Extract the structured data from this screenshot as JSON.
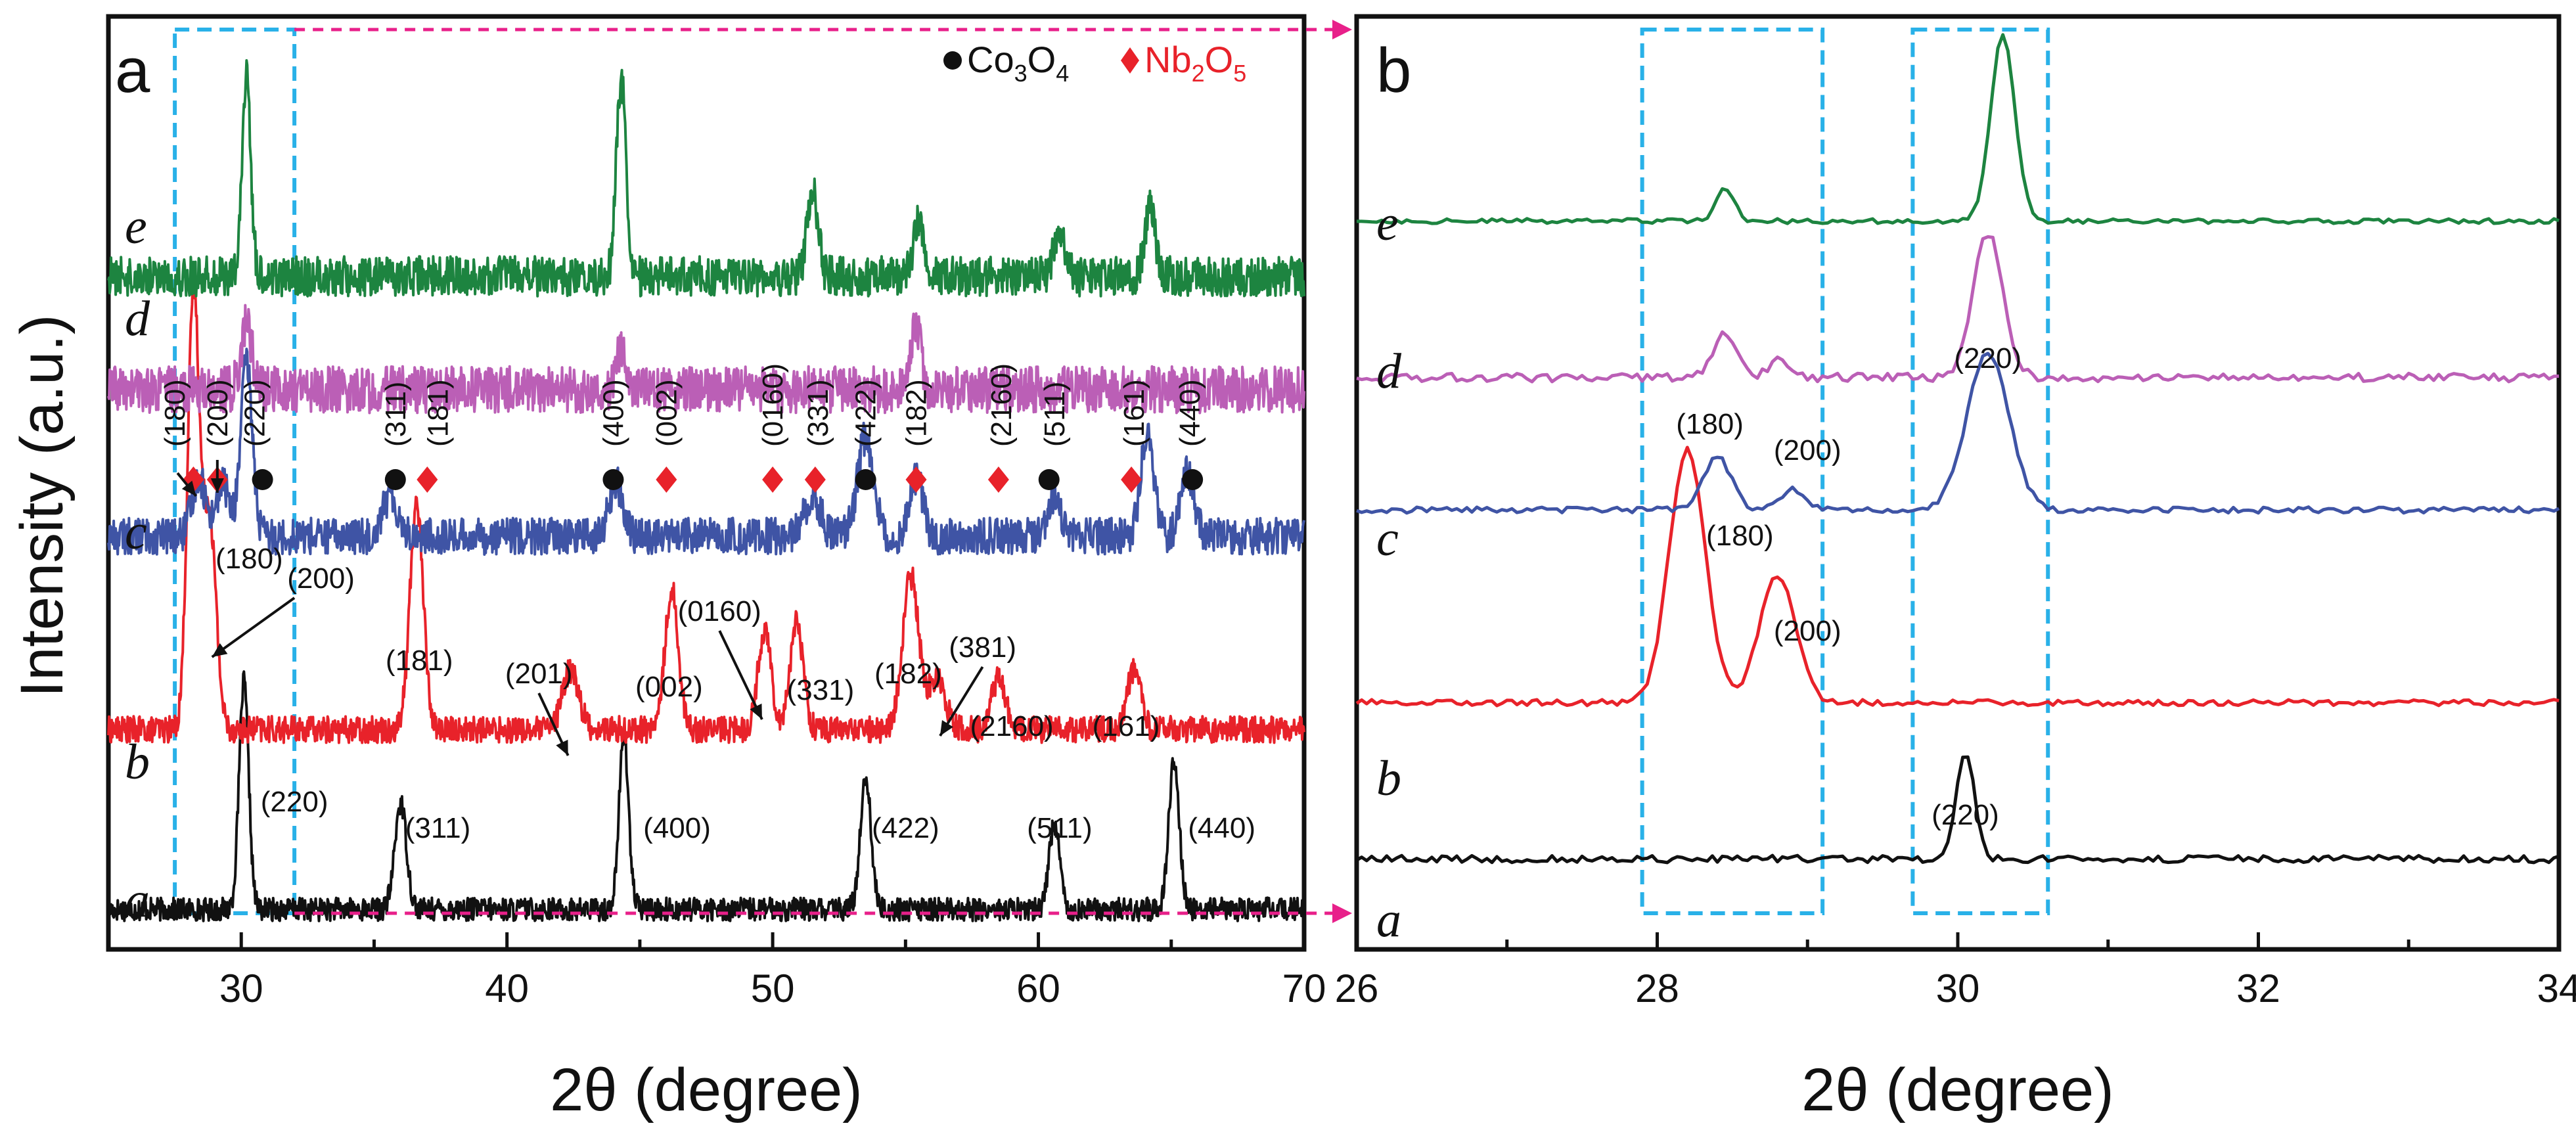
{
  "y_axis_title": "Intensity (a.u.)",
  "legend": [
    {
      "symbol": "circle",
      "label": "Co3O4",
      "text": "Co",
      "sub1": "3",
      "mid": "O",
      "sub2": "4",
      "color": "#111111"
    },
    {
      "symbol": "diamond",
      "label": "Nb2O5",
      "text": "Nb",
      "sub1": "2",
      "mid": "O",
      "sub2": "5",
      "color": "#e8222a"
    }
  ],
  "series_colors": {
    "a": "#111111",
    "b": "#e8222a",
    "c": "#3f54a5",
    "d": "#bb5fb6",
    "e": "#1d8440"
  },
  "highlight_colors": {
    "box": "#29b1e8",
    "connector": "#e8208a"
  },
  "chart_data": [
    {
      "panel": "a",
      "type": "line",
      "xlabel": "2θ (degree)",
      "ylabel": "Intensity (a.u.)",
      "xlim": [
        25,
        70
      ],
      "xticks": [
        30,
        40,
        50,
        60,
        70
      ],
      "x_minor_step": 5,
      "curve_order_bottom_to_top": [
        "a",
        "b",
        "c",
        "d",
        "e",
        "top"
      ],
      "series": [
        {
          "name": "a",
          "label": "a",
          "baseline": 0.0,
          "noise": 0.35,
          "peaks": [
            [
              30.1,
              3.4,
              0.18
            ],
            [
              36.0,
              1.6,
              0.22
            ],
            [
              44.4,
              2.6,
              0.18
            ],
            [
              53.5,
              2.0,
              0.2
            ],
            [
              60.6,
              1.3,
              0.2
            ],
            [
              65.1,
              2.2,
              0.2
            ]
          ]
        },
        {
          "name": "b",
          "label": "b",
          "baseline": 2.7,
          "noise": 0.4,
          "peaks": [
            [
              28.2,
              6.5,
              0.22
            ],
            [
              28.8,
              3.2,
              0.25
            ],
            [
              36.6,
              3.4,
              0.25
            ],
            [
              42.4,
              0.9,
              0.3
            ],
            [
              46.2,
              2.1,
              0.25
            ],
            [
              49.7,
              1.5,
              0.25
            ],
            [
              50.9,
              1.6,
              0.25
            ],
            [
              55.2,
              2.3,
              0.3
            ],
            [
              56.2,
              0.8,
              0.3
            ],
            [
              58.5,
              0.8,
              0.25
            ],
            [
              63.6,
              0.9,
              0.25
            ]
          ]
        },
        {
          "name": "c",
          "label": "c",
          "baseline": 5.6,
          "noise": 0.55,
          "peaks": [
            [
              28.4,
              0.9,
              0.25
            ],
            [
              29.3,
              0.8,
              0.25
            ],
            [
              30.2,
              2.6,
              0.22
            ],
            [
              35.6,
              0.6,
              0.3
            ],
            [
              44.1,
              0.8,
              0.25
            ],
            [
              51.5,
              0.6,
              0.3
            ],
            [
              53.5,
              1.5,
              0.3
            ],
            [
              55.4,
              0.9,
              0.25
            ],
            [
              60.6,
              0.6,
              0.25
            ],
            [
              64.1,
              1.5,
              0.25
            ],
            [
              65.6,
              1.0,
              0.25
            ]
          ]
        },
        {
          "name": "d",
          "label": "d",
          "baseline": 7.8,
          "noise": 0.7,
          "peaks": [
            [
              30.2,
              1.0,
              0.2
            ],
            [
              44.3,
              0.6,
              0.2
            ],
            [
              55.4,
              0.9,
              0.2
            ]
          ]
        },
        {
          "name": "top",
          "label": "e",
          "baseline": 9.5,
          "noise": 0.6,
          "peaks": [
            [
              30.2,
              3.0,
              0.16
            ],
            [
              44.3,
              3.0,
              0.18
            ],
            [
              51.5,
              1.3,
              0.2
            ],
            [
              55.5,
              0.8,
              0.2
            ],
            [
              60.8,
              0.7,
              0.2
            ],
            [
              64.2,
              1.0,
              0.2
            ]
          ]
        }
      ],
      "curve_labels": [
        "a",
        "b",
        "c",
        "d",
        "e"
      ],
      "markers": [
        {
          "symbol": "diamond",
          "x": 28.2
        },
        {
          "symbol": "diamond",
          "x": 29.1
        },
        {
          "symbol": "circle",
          "x": 30.8
        },
        {
          "symbol": "circle",
          "x": 35.8
        },
        {
          "symbol": "diamond",
          "x": 37.0
        },
        {
          "symbol": "circle",
          "x": 44.0
        },
        {
          "symbol": "diamond",
          "x": 46.0
        },
        {
          "symbol": "diamond",
          "x": 50.0
        },
        {
          "symbol": "diamond",
          "x": 51.6
        },
        {
          "symbol": "circle",
          "x": 53.5
        },
        {
          "symbol": "diamond",
          "x": 55.4
        },
        {
          "symbol": "diamond",
          "x": 58.5
        },
        {
          "symbol": "circle",
          "x": 60.4
        },
        {
          "symbol": "diamond",
          "x": 63.5
        },
        {
          "symbol": "circle",
          "x": 65.8
        }
      ],
      "annotations_c_vertical": [
        {
          "text": "(180)",
          "x": 27.5
        },
        {
          "text": "(200)",
          "x": 29.1
        },
        {
          "text": "(220)",
          "x": 30.5
        },
        {
          "text": "(311)",
          "x": 35.8
        },
        {
          "text": "(181)",
          "x": 37.4
        },
        {
          "text": "(400)",
          "x": 44.0
        },
        {
          "text": "(002)",
          "x": 46.0
        },
        {
          "text": "(0160)",
          "x": 50.0
        },
        {
          "text": "(331)",
          "x": 51.7
        },
        {
          "text": "(422)",
          "x": 53.5
        },
        {
          "text": "(182)",
          "x": 55.4
        },
        {
          "text": "(2160)",
          "x": 58.6
        },
        {
          "text": "(511)",
          "x": 60.6
        },
        {
          "text": "(161)",
          "x": 63.6
        },
        {
          "text": "(440)",
          "x": 65.7
        }
      ],
      "annotations_b": [
        {
          "text": "(180)",
          "x": 30.3
        },
        {
          "text": "(200)",
          "x": 33.0
        },
        {
          "text": "(181)",
          "x": 36.7
        },
        {
          "text": "(201)",
          "x": 41.2
        },
        {
          "text": "(0160)",
          "x": 48.0
        },
        {
          "text": "(002)",
          "x": 46.1
        },
        {
          "text": "(331)",
          "x": 51.8
        },
        {
          "text": "(182)",
          "x": 55.1
        },
        {
          "text": "(381)",
          "x": 57.9
        },
        {
          "text": "(2160)",
          "x": 59.0
        },
        {
          "text": "(161)",
          "x": 63.3
        }
      ],
      "annotations_a": [
        {
          "text": "(220)",
          "x": 32.0
        },
        {
          "text": "(311)",
          "x": 37.4
        },
        {
          "text": "(400)",
          "x": 46.4
        },
        {
          "text": "(422)",
          "x": 55.0
        },
        {
          "text": "(511)",
          "x": 60.8
        },
        {
          "text": "(440)",
          "x": 66.9
        }
      ],
      "highlight_range": [
        27.5,
        32.0
      ]
    },
    {
      "panel": "b",
      "type": "line",
      "xlabel": "2θ (degree)",
      "ylabel": "",
      "xlim": [
        26,
        34
      ],
      "xticks": [
        26,
        28,
        30,
        32,
        34
      ],
      "x_minor_step": 1,
      "series": [
        {
          "name": "a",
          "label": "a",
          "baseline": 0.0,
          "noise": 0.12,
          "peaks": [
            [
              30.05,
              1.8,
              0.06
            ]
          ]
        },
        {
          "name": "b",
          "label": "b",
          "baseline": 2.6,
          "noise": 0.1,
          "peaks": [
            [
              28.2,
              4.2,
              0.12
            ],
            [
              28.8,
              2.1,
              0.12
            ]
          ]
        },
        {
          "name": "c",
          "label": "c",
          "baseline": 5.8,
          "noise": 0.1,
          "peaks": [
            [
              28.4,
              0.9,
              0.09
            ],
            [
              28.9,
              0.35,
              0.08
            ],
            [
              30.2,
              2.6,
              0.14
            ]
          ]
        },
        {
          "name": "d",
          "label": "d",
          "baseline": 8.0,
          "noise": 0.14,
          "peaks": [
            [
              28.45,
              0.75,
              0.08
            ],
            [
              28.8,
              0.3,
              0.06
            ],
            [
              30.2,
              2.4,
              0.1
            ]
          ]
        },
        {
          "name": "top",
          "label": "e",
          "baseline": 10.6,
          "noise": 0.08,
          "peaks": [
            [
              28.45,
              0.55,
              0.06
            ],
            [
              30.3,
              3.1,
              0.08
            ]
          ]
        }
      ],
      "curve_labels": [
        "a",
        "b",
        "c",
        "d",
        "e"
      ],
      "annotations": [
        {
          "text": "(220)",
          "x": 30.05,
          "curve": "a"
        },
        {
          "text": "(180)",
          "x": 28.5,
          "curve": "b"
        },
        {
          "text": "(200)",
          "x": 29.0,
          "curve": "b"
        },
        {
          "text": "(180)",
          "x": 28.35,
          "curve": "c"
        },
        {
          "text": "(200)",
          "x": 28.95,
          "curve": "c"
        },
        {
          "text": "(220)",
          "x": 30.2,
          "curve": "c"
        }
      ],
      "highlight_ranges": [
        [
          27.9,
          29.1
        ],
        [
          29.7,
          30.6
        ]
      ]
    }
  ]
}
